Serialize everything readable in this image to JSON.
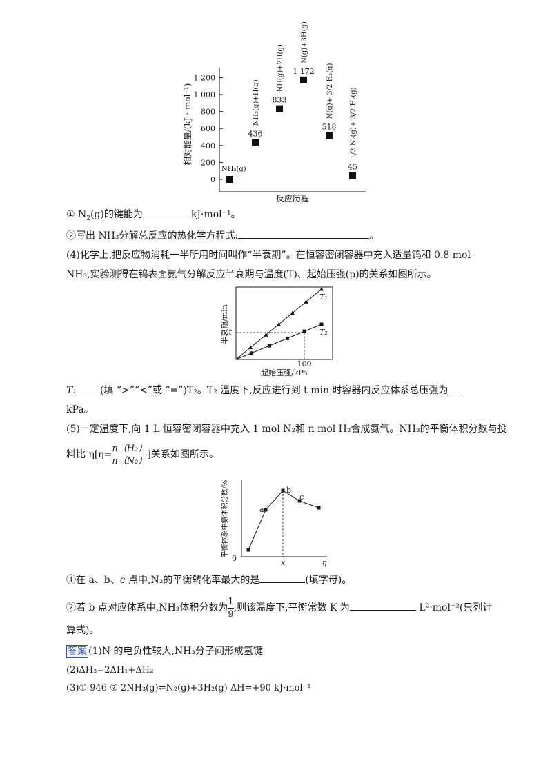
{
  "chart1": {
    "y_label": "相对能量/(kJ · mol⁻¹)",
    "x_label": "反应历程",
    "y_ticks": [
      "1 200",
      "1 000",
      "800",
      "600",
      "400",
      "200",
      "0"
    ],
    "points": [
      {
        "label": "NH₃(g)",
        "value_text": "",
        "value": 0
      },
      {
        "label": "NH₂(g)+H(g)",
        "value_text": "436",
        "value": 436
      },
      {
        "label": "NH(g)+2H(g)",
        "value_text": "833",
        "value": 833
      },
      {
        "label": "N(g)+3H(g)",
        "value_text": "1 172",
        "value": 1172
      },
      {
        "label": "N(g)+ 3/2 H₂(g)",
        "value_text": "518",
        "value": 518
      },
      {
        "label": "1/2 N₂(g)+ 3/2 H₂(g)",
        "value_text": "45",
        "value": 45
      }
    ]
  },
  "q3_1": {
    "prefix": "① N",
    "sub": "2",
    "mid": "(g)的键能为",
    "suffix": "kJ·mol⁻¹。"
  },
  "q3_2": {
    "text": "②写出 NH₃分解总反应的热化学方程式:",
    "suffix": "。"
  },
  "q4_line1": "(4)化学上,把反应物消耗一半所用时间叫作“半衰期”。在恒容密闭容器中充入适量钨和 0.8 mol",
  "q4_line2": "NH₃,实验测得在钨表面氨气分解反应半衰期与温度(T)、起始压强(p)的关系如图所示。",
  "chart2": {
    "y_label": "半衰期/min",
    "x_label": "起始压强/kPa",
    "x_tick": "100",
    "y_tick": "t",
    "series": [
      {
        "name": "T₁",
        "marker": "triangle"
      },
      {
        "name": "T₂",
        "marker": "square"
      }
    ]
  },
  "q4_fill": {
    "t1": "T₁",
    "text1": "(填 “>”“<”或 “=”)T₂。T₂ 温度下,反应进行到 t min 时容器内反应体系总压强为",
    "line2": "kPa。"
  },
  "q5_line1": "(5)一定温度下,向 1 L 恒容密闭容器中充入 1 mol N₂和 n mol H₂合成氨气。NH₃的平衡体积分数与投",
  "q5_line2": {
    "prefix": "料比 η[η=",
    "num": "n（H₂）",
    "den": "n（N₂）",
    "suffix": "]关系如图所示。"
  },
  "chart3": {
    "y_label": "平衡体系中氨体积分数/%",
    "origin": "0",
    "x_tick": "x",
    "x_axis": "η",
    "point_labels": [
      "a",
      "b",
      "c"
    ]
  },
  "q5_1": {
    "text": "①在 a、b、c 点中,N₂的平衡转化率最大的是",
    "suffix": "(填字母)。"
  },
  "q5_2": {
    "prefix": "②若 b 点对应体系中,NH₃体积分数为",
    "num": "1",
    "den": "9",
    "mid": ",则该温度下,平衡常数 K 为",
    "suffix": "L²·mol⁻²(只列计"
  },
  "q5_2_line2": "算式)。",
  "answer": {
    "tag": "答案",
    "a1": "(1)N 的电负性较大,NH₃分子间形成氢键",
    "a2": "(2)ΔH₃=2ΔH₁+ΔH₂",
    "a3": "(3)① 946    ② 2NH₃(g)⇌N₂(g)+3H₂(g)    ΔH=+90 kJ·mol⁻¹"
  }
}
